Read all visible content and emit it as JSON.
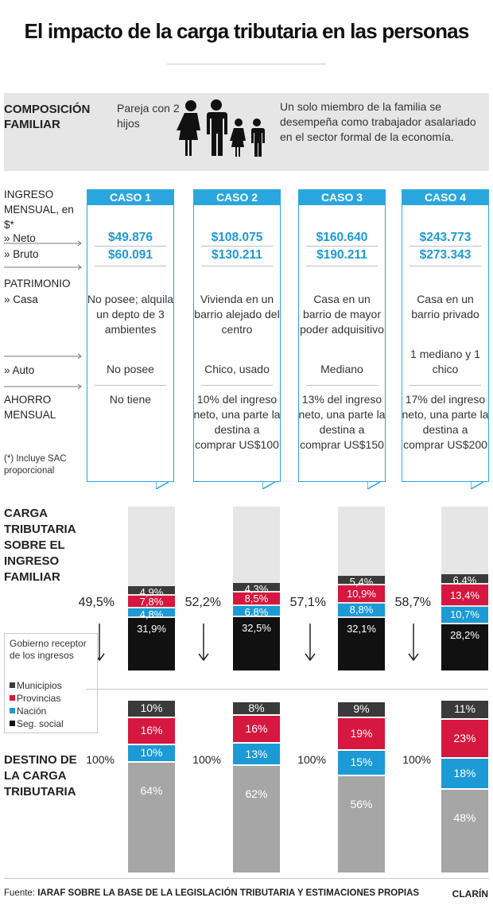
{
  "title": "El impacto de la carga tributaria en las personas",
  "family": {
    "label": "COMPOSICIÓN FAMILIAR",
    "type": "Pareja con 2 hijos",
    "icon": "family-icon",
    "description": "Un solo miembro de la familia se desempeña como trabajador asalariado en el sector formal de la economía."
  },
  "rows": {
    "ingreso": "INGRESO MENSUAL, en $*",
    "neto": "» Neto",
    "bruto": "» Bruto",
    "patrimonio": "PATRIMONIO",
    "casa": "» Casa",
    "auto": "» Auto",
    "ahorro": "AHORRO MENSUAL",
    "footnote": "(*) Incluye SAC proporcional"
  },
  "cases": [
    {
      "name": "CASO 1",
      "neto": "$49.876",
      "bruto": "$60.091",
      "casa": "No posee; alquila un depto de 3 ambientes",
      "auto": "No posee",
      "ahorro": "No tiene"
    },
    {
      "name": "CASO 2",
      "neto": "$108.075",
      "bruto": "$130.211",
      "casa": "Vivienda en un barrio alejado del centro",
      "auto": "Chico, usado",
      "ahorro": "10% del ingreso neto, una parte la destina a comprar US$100"
    },
    {
      "name": "CASO 3",
      "neto": "$160.640",
      "bruto": "$190.211",
      "casa": "Casa en un barrio de mayor poder adquisitivo",
      "auto": "Mediano",
      "ahorro": "13% del ingreso neto, una parte la destina a comprar US$150"
    },
    {
      "name": "CASO 4",
      "neto": "$243.773",
      "bruto": "$273.343",
      "casa": "Casa en un barrio privado",
      "auto": "1 mediano y 1 chico",
      "ahorro": "17% del ingreso neto, una parte la destina a comprar US$200"
    }
  ],
  "sections": {
    "carga": "CARGA TRIBUTARIA SOBRE EL INGRESO FAMILIAR",
    "destino": "DESTINO DE LA CARGA TRIBUTARIA"
  },
  "legend": {
    "title": "Gobierno receptor de los ingresos",
    "items": [
      {
        "label": "Municipios",
        "color": "#3a3a3a"
      },
      {
        "label": "Provincias",
        "color": "#d6173f"
      },
      {
        "label": "Nación",
        "color": "#1c9ad6"
      },
      {
        "label": "Seg. social",
        "color": "#111111"
      }
    ]
  },
  "chart_data": [
    {
      "type": "bar",
      "stacked": true,
      "title": "CARGA TRIBUTARIA SOBRE EL INGRESO FAMILIAR",
      "categories": [
        "CASO 1",
        "CASO 2",
        "CASO 3",
        "CASO 4"
      ],
      "ylim": [
        0,
        100
      ],
      "totals": [
        49.5,
        52.2,
        57.1,
        58.7
      ],
      "total_labels": [
        "49,5%",
        "52,2%",
        "57,1%",
        "58,7%"
      ],
      "series": [
        {
          "name": "Seg. social",
          "color": "#111111",
          "values": [
            31.9,
            32.5,
            32.1,
            28.2
          ],
          "labels": [
            "31,9%",
            "32,5%",
            "32,1%",
            "28,2%"
          ]
        },
        {
          "name": "Nación",
          "color": "#1c9ad6",
          "values": [
            4.8,
            6.8,
            8.8,
            10.7
          ],
          "labels": [
            "4,8%",
            "6,8%",
            "8,8%",
            "10,7%"
          ]
        },
        {
          "name": "Provincias",
          "color": "#d6173f",
          "values": [
            7.8,
            8.5,
            10.9,
            13.4
          ],
          "labels": [
            "7,8%",
            "8,5%",
            "10,9%",
            "13,4%"
          ]
        },
        {
          "name": "Municipios",
          "color": "#3a3a3a",
          "values": [
            4.9,
            4.3,
            5.4,
            6.4
          ],
          "labels": [
            "4,9%",
            "4,3%",
            "5,4%",
            "6,4%"
          ]
        }
      ]
    },
    {
      "type": "bar",
      "stacked": true,
      "title": "DESTINO DE LA CARGA TRIBUTARIA",
      "categories": [
        "CASO 1",
        "CASO 2",
        "CASO 3",
        "CASO 4"
      ],
      "ylim": [
        0,
        100
      ],
      "total_labels": [
        "100%",
        "100%",
        "100%",
        "100%"
      ],
      "series": [
        {
          "name": "Seg. social",
          "color": "#a6a6a6",
          "values": [
            64,
            62,
            56,
            48
          ],
          "labels": [
            "64%",
            "62%",
            "56%",
            "48%"
          ]
        },
        {
          "name": "Nación",
          "color": "#1c9ad6",
          "values": [
            10,
            13,
            15,
            18
          ],
          "labels": [
            "10%",
            "13%",
            "15%",
            "18%"
          ]
        },
        {
          "name": "Provincias",
          "color": "#d6173f",
          "values": [
            16,
            16,
            19,
            23
          ],
          "labels": [
            "16%",
            "16%",
            "19%",
            "23%"
          ]
        },
        {
          "name": "Municipios",
          "color": "#3a3a3a",
          "values": [
            10,
            8,
            9,
            11
          ],
          "labels": [
            "10%",
            "8%",
            "9%",
            "11%"
          ]
        }
      ]
    }
  ],
  "footer": {
    "source_label": "Fuente:",
    "source": "IARAF SOBRE LA BASE DE LA LEGISLACIÓN TRIBUTARIA Y ESTIMACIONES PROPIAS",
    "brand": "CLARÍN"
  }
}
